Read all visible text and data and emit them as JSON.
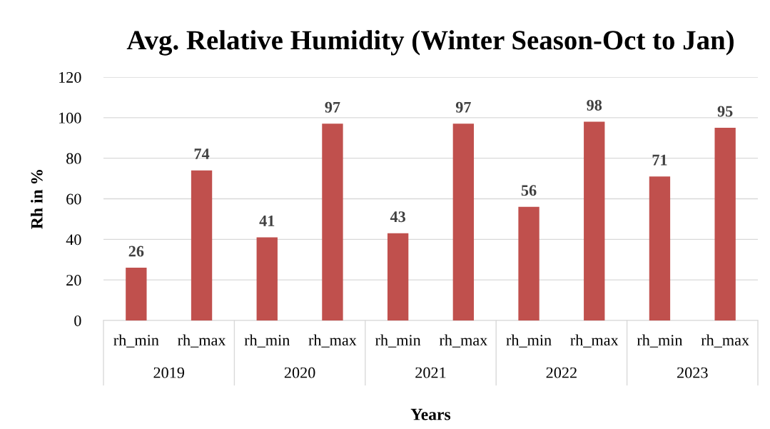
{
  "chart_data": {
    "type": "bar",
    "title": "Avg. Relative Humidity (Winter Season-Oct to Jan)",
    "xlabel": "Years",
    "ylabel": "Rh in %",
    "categories": [
      "rh_min",
      "rh_max",
      "rh_min",
      "rh_max",
      "rh_min",
      "rh_max",
      "rh_min",
      "rh_max",
      "rh_min",
      "rh_max"
    ],
    "values": [
      26,
      74,
      41,
      97,
      43,
      97,
      56,
      98,
      71,
      95
    ],
    "color": "#c0504d",
    "ylim": [
      0,
      120
    ],
    "yticks": [
      0,
      20,
      40,
      60,
      80,
      100,
      120
    ],
    "grid": "y",
    "data_labels": true,
    "legend": false,
    "annotations": [
      "2019",
      "2020",
      "2021",
      "2022",
      "2023"
    ]
  }
}
